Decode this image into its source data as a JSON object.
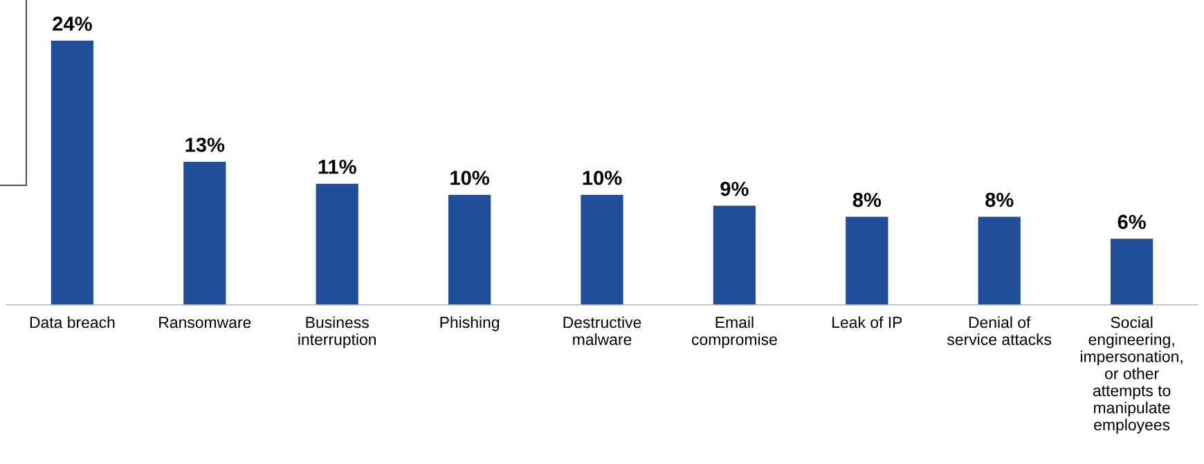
{
  "chart_data": {
    "type": "bar",
    "categories": [
      "Data breach",
      "Ransomware",
      "Business\ninterruption",
      "Phishing",
      "Destructive\nmalware",
      "Email\ncompromise",
      "Leak of IP",
      "Denial of\nservice attacks",
      "Social\nengineering,\nimpersonation,\nor other\nattempts to\nmanipulate\nemployees"
    ],
    "values": [
      24,
      13,
      11,
      10,
      10,
      9,
      8,
      8,
      6
    ],
    "value_labels": [
      "24%",
      "13%",
      "11%",
      "10%",
      "10%",
      "9%",
      "8%",
      "8%",
      "6%"
    ],
    "color": "#1f4e9b",
    "grid": false,
    "legend": false
  }
}
